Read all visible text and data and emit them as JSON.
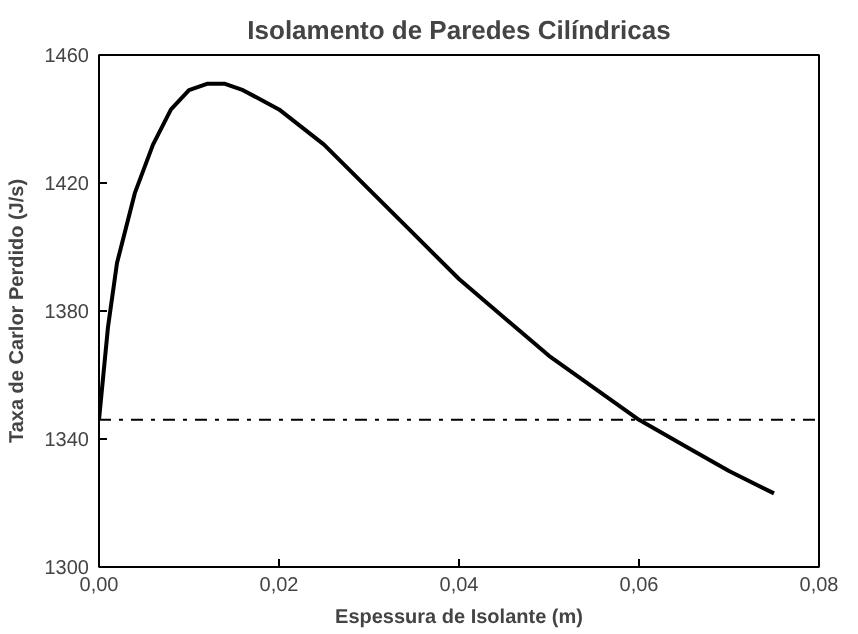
{
  "chart_data": {
    "type": "line",
    "title": "Isolamento de Paredes Cilíndricas",
    "xlabel": "Espessura de Isolante (m)",
    "ylabel": "Taxa de Carlor Perdido (J/s)",
    "x": [
      0,
      0.001,
      0.002,
      0.004,
      0.006,
      0.008,
      0.01,
      0.012,
      0.014,
      0.016,
      0.02,
      0.025,
      0.03,
      0.035,
      0.04,
      0.045,
      0.05,
      0.055,
      0.06,
      0.065,
      0.07,
      0.075
    ],
    "series": [
      {
        "color": "#000000",
        "values": [
          1346,
          1375,
          1395,
          1417,
          1432,
          1443,
          1449,
          1451,
          1451,
          1449,
          1443,
          1432,
          1418,
          1404,
          1390,
          1378,
          1366,
          1356,
          1346,
          1338,
          1330,
          1323
        ]
      }
    ],
    "xlim": [
      0,
      0.08
    ],
    "xticks": [
      {
        "value": 0,
        "label": "0,00"
      },
      {
        "value": 0.02,
        "label": "0,02"
      },
      {
        "value": 0.04,
        "label": "0,04"
      },
      {
        "value": 0.06,
        "label": "0,06"
      },
      {
        "value": 0.08,
        "label": "0,08"
      }
    ],
    "ylim": [
      1300,
      1460
    ],
    "yticks": [
      1300,
      1340,
      1380,
      1420,
      1460
    ],
    "ref_lines": [
      {
        "axis": "y",
        "value": 1346,
        "color": "#000000",
        "line_style": "dashdot"
      }
    ],
    "grid": false,
    "marker": "none",
    "line_style": "solid"
  }
}
